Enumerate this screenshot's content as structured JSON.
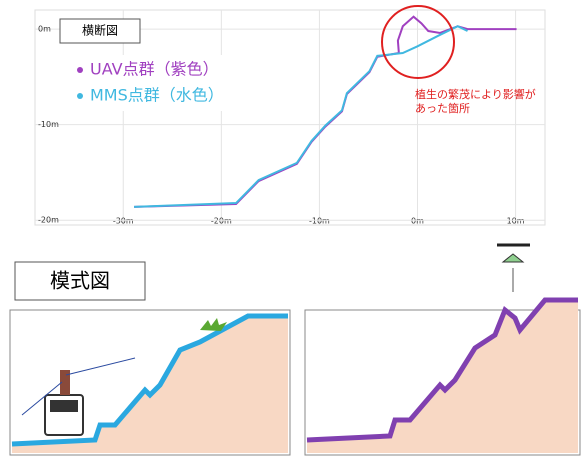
{
  "chart_data": {
    "type": "line",
    "title": "横断図",
    "xlim": [
      -39,
      13
    ],
    "ylim": [
      -20.5,
      2
    ],
    "xticks": [
      {
        "value": -30,
        "label": "-30m"
      },
      {
        "value": -20,
        "label": "-20m"
      },
      {
        "value": -10,
        "label": "-10m"
      },
      {
        "value": 0,
        "label": "0m"
      },
      {
        "value": 10,
        "label": "10m"
      }
    ],
    "yticks": [
      {
        "value": 0,
        "label": "0m"
      },
      {
        "value": -10,
        "label": "-10m"
      },
      {
        "value": -20,
        "label": "-20m"
      }
    ],
    "grid": true,
    "series": [
      {
        "name": "UAV点群（紫色）",
        "color": "#a040c0",
        "x": [
          -28.9,
          -18.5,
          -16.2,
          -12.3,
          -10.8,
          -9.4,
          -7.7,
          -7.2,
          -4.9,
          -4.1,
          -1.9,
          -2.0,
          -1.5,
          -0.4,
          0.4,
          1.1,
          2.3,
          4.1,
          5.1,
          10.1
        ],
        "values": [
          -18.6,
          -18.3,
          -15.9,
          -14.1,
          -11.8,
          -10.2,
          -8.6,
          -6.8,
          -4.5,
          -2.9,
          -2.5,
          -1.2,
          0.3,
          1.3,
          0.6,
          -0.2,
          -0.4,
          0.3,
          0,
          0
        ]
      },
      {
        "name": "MMS点群（水色）",
        "color": "#40b8e0",
        "x": [
          -28.9,
          -18.5,
          -16.2,
          -12.3,
          -10.8,
          -9.4,
          -7.7,
          -7.2,
          -4.9,
          -4.1,
          -1.5,
          0,
          2.1,
          4.1,
          5.1
        ],
        "values": [
          -18.6,
          -18.2,
          -15.8,
          -14.0,
          -11.7,
          -10.1,
          -8.5,
          -6.7,
          -4.4,
          -2.8,
          -2.5,
          -1.8,
          -0.7,
          0.3,
          -0.2
        ]
      }
    ],
    "annotation": "植生の繁茂により影響があった箇所"
  },
  "schematic": {
    "label": "模式図"
  }
}
